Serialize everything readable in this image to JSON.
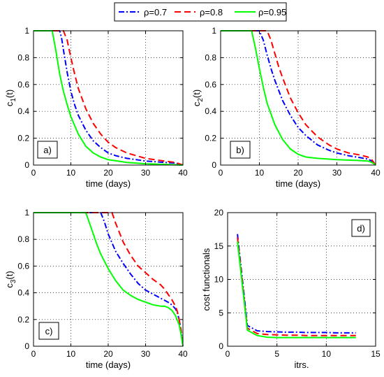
{
  "legend": {
    "items": [
      {
        "label": "ρ=0.7",
        "color": "#0000ff",
        "dash": "dashdot"
      },
      {
        "label": "ρ=0.8",
        "color": "#ff0000",
        "dash": "dashed"
      },
      {
        "label": "ρ=0.95",
        "color": "#00ff00",
        "dash": "solid"
      }
    ]
  },
  "chart_data": [
    {
      "id": "a",
      "type": "line",
      "panel_label": "a)",
      "xlabel": "time (days)",
      "ylabel": "c",
      "ylabel_sub": "1",
      "ylabel_suffix": "(t)",
      "xlim": [
        0,
        40
      ],
      "ylim": [
        0,
        1
      ],
      "xticks": [
        0,
        10,
        20,
        30,
        40
      ],
      "yticks": [
        0,
        0.2,
        0.4,
        0.6,
        0.8,
        1
      ],
      "grid": true,
      "series": [
        {
          "name": "ρ=0.7",
          "color": "#0000ff",
          "dash": "dashdot",
          "x": [
            0,
            7,
            7.5,
            8,
            9,
            10,
            11,
            12,
            14,
            16,
            18,
            20,
            22,
            25,
            30,
            35,
            38,
            40
          ],
          "y": [
            1,
            1,
            0.95,
            0.86,
            0.69,
            0.55,
            0.45,
            0.37,
            0.26,
            0.18,
            0.13,
            0.09,
            0.07,
            0.05,
            0.03,
            0.02,
            0.015,
            0
          ]
        },
        {
          "name": "ρ=0.8",
          "color": "#ff0000",
          "dash": "dashed",
          "x": [
            0,
            8,
            9,
            10,
            11,
            12,
            14,
            16,
            18,
            20,
            22,
            25,
            30,
            35,
            38,
            40
          ],
          "y": [
            1,
            1,
            0.93,
            0.8,
            0.68,
            0.57,
            0.42,
            0.31,
            0.23,
            0.17,
            0.13,
            0.09,
            0.05,
            0.03,
            0.02,
            0
          ]
        },
        {
          "name": "ρ=0.95",
          "color": "#00ff00",
          "dash": "solid",
          "x": [
            0,
            5,
            6,
            7,
            8,
            9,
            10,
            12,
            14,
            16,
            18,
            20,
            25,
            30,
            35,
            40
          ],
          "y": [
            1,
            1,
            0.85,
            0.68,
            0.55,
            0.45,
            0.36,
            0.23,
            0.14,
            0.09,
            0.06,
            0.04,
            0.02,
            0.01,
            0.005,
            0
          ]
        }
      ]
    },
    {
      "id": "b",
      "type": "line",
      "panel_label": "b)",
      "xlabel": "time (days)",
      "ylabel": "c",
      "ylabel_sub": "2",
      "ylabel_suffix": "(t)",
      "xlim": [
        0,
        40
      ],
      "ylim": [
        0,
        1
      ],
      "xticks": [
        0,
        10,
        20,
        30,
        40
      ],
      "yticks": [
        0,
        0.2,
        0.4,
        0.6,
        0.8,
        1
      ],
      "grid": true,
      "series": [
        {
          "name": "ρ=0.7",
          "color": "#0000ff",
          "dash": "dashdot",
          "x": [
            0,
            10,
            11,
            12,
            13,
            14,
            16,
            18,
            20,
            22,
            25,
            28,
            30,
            33,
            36,
            38,
            39,
            40
          ],
          "y": [
            1,
            1,
            0.93,
            0.82,
            0.72,
            0.63,
            0.48,
            0.37,
            0.28,
            0.22,
            0.15,
            0.11,
            0.09,
            0.07,
            0.055,
            0.045,
            0.03,
            0
          ]
        },
        {
          "name": "ρ=0.8",
          "color": "#ff0000",
          "dash": "dashed",
          "x": [
            0,
            12,
            13,
            14,
            15,
            16,
            18,
            20,
            22,
            25,
            28,
            30,
            33,
            36,
            38,
            39,
            40
          ],
          "y": [
            1,
            1,
            0.93,
            0.83,
            0.73,
            0.65,
            0.5,
            0.39,
            0.3,
            0.21,
            0.15,
            0.12,
            0.09,
            0.075,
            0.06,
            0.04,
            0
          ]
        },
        {
          "name": "ρ=0.95",
          "color": "#00ff00",
          "dash": "solid",
          "x": [
            0,
            8,
            9,
            10,
            11,
            12,
            14,
            16,
            18,
            20,
            22,
            25,
            30,
            35,
            38,
            39,
            40
          ],
          "y": [
            1,
            1,
            0.87,
            0.72,
            0.58,
            0.46,
            0.3,
            0.19,
            0.12,
            0.08,
            0.06,
            0.05,
            0.04,
            0.035,
            0.03,
            0.02,
            0
          ]
        }
      ]
    },
    {
      "id": "c",
      "type": "line",
      "panel_label": "c)",
      "xlabel": "time (days)",
      "ylabel": "c",
      "ylabel_sub": "3",
      "ylabel_suffix": "(t)",
      "xlim": [
        0,
        40
      ],
      "ylim": [
        0,
        1
      ],
      "xticks": [
        0,
        10,
        20,
        30,
        40
      ],
      "yticks": [
        0,
        0.2,
        0.4,
        0.6,
        0.8,
        1
      ],
      "grid": true,
      "series": [
        {
          "name": "ρ=0.7",
          "color": "#0000ff",
          "dash": "dashdot",
          "x": [
            0,
            18,
            19,
            20,
            22,
            24,
            26,
            28,
            30,
            32,
            34,
            36,
            37,
            38,
            38.5,
            39,
            39.5,
            40
          ],
          "y": [
            1,
            1,
            0.93,
            0.84,
            0.71,
            0.62,
            0.54,
            0.47,
            0.42,
            0.39,
            0.36,
            0.33,
            0.31,
            0.28,
            0.25,
            0.2,
            0.12,
            0
          ]
        },
        {
          "name": "ρ=0.8",
          "color": "#ff0000",
          "dash": "dashed",
          "x": [
            0,
            21,
            22,
            23,
            24,
            26,
            28,
            30,
            32,
            34,
            35,
            36,
            37,
            38,
            38.5,
            39,
            39.5,
            40
          ],
          "y": [
            1,
            1,
            0.92,
            0.85,
            0.78,
            0.68,
            0.6,
            0.55,
            0.5,
            0.46,
            0.43,
            0.39,
            0.35,
            0.3,
            0.26,
            0.2,
            0.12,
            0
          ]
        },
        {
          "name": "ρ=0.95",
          "color": "#00ff00",
          "dash": "solid",
          "x": [
            0,
            14,
            15,
            16,
            17,
            18,
            20,
            22,
            24,
            26,
            28,
            30,
            32,
            34,
            35,
            36,
            37,
            38,
            39,
            39.5,
            40
          ],
          "y": [
            1,
            1,
            0.92,
            0.84,
            0.76,
            0.69,
            0.58,
            0.49,
            0.42,
            0.38,
            0.35,
            0.33,
            0.31,
            0.3,
            0.3,
            0.29,
            0.27,
            0.23,
            0.16,
            0.09,
            0
          ]
        }
      ]
    },
    {
      "id": "d",
      "type": "line",
      "panel_label": "d)",
      "xlabel": "itrs.",
      "ylabel": "cost functionals",
      "xlim": [
        0,
        15
      ],
      "ylim": [
        0,
        20
      ],
      "xticks": [
        0,
        5,
        10,
        15
      ],
      "yticks": [
        0,
        5,
        10,
        15,
        20
      ],
      "grid": true,
      "series": [
        {
          "name": "ρ=0.7",
          "color": "#0000ff",
          "dash": "dashdot",
          "x": [
            1,
            2,
            3,
            4,
            5,
            6,
            7,
            8,
            9,
            10,
            11,
            12,
            13
          ],
          "y": [
            16.8,
            3.1,
            2.3,
            2.2,
            2.15,
            2.1,
            2.1,
            2.05,
            2.05,
            2.05,
            2.0,
            2.0,
            2.0
          ]
        },
        {
          "name": "ρ=0.8",
          "color": "#ff0000",
          "dash": "dashed",
          "x": [
            1,
            2,
            3,
            4,
            5,
            6,
            7,
            8,
            9,
            10,
            11,
            12,
            13
          ],
          "y": [
            16.3,
            2.7,
            1.9,
            1.75,
            1.7,
            1.65,
            1.65,
            1.6,
            1.6,
            1.6,
            1.6,
            1.6,
            1.6
          ]
        },
        {
          "name": "ρ=0.95",
          "color": "#00ff00",
          "dash": "solid",
          "x": [
            1,
            2,
            3,
            4,
            5,
            6,
            7,
            8,
            9,
            10,
            11,
            12,
            13
          ],
          "y": [
            15.7,
            2.4,
            1.6,
            1.35,
            1.3,
            1.3,
            1.3,
            1.3,
            1.3,
            1.3,
            1.3,
            1.3,
            1.3
          ]
        }
      ]
    }
  ]
}
